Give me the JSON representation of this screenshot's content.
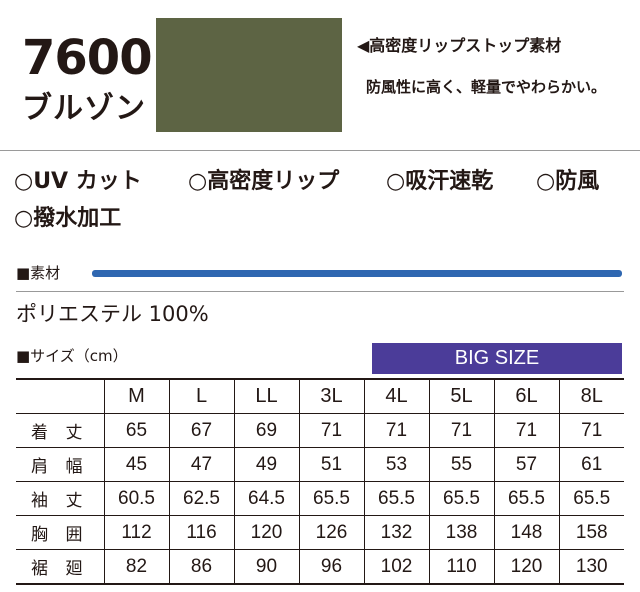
{
  "product": {
    "model": "7600",
    "name": "ブルゾン",
    "swatch_color": "#5d6444"
  },
  "fabric": {
    "title": "◀高密度リップストップ素材",
    "description": "防風性に高く、軽量でやわらかい。"
  },
  "features": [
    "○UV カット",
    "○高密度リップ",
    "○吸汗速乾",
    "○防風",
    "○撥水加工"
  ],
  "material": {
    "label": "■素材",
    "value": "ポリエステル 100%",
    "accent_color": "#2f67b1"
  },
  "size": {
    "label": "■サイズ（cm）",
    "big_size_label": "BIG SIZE",
    "big_size_color": "#4b3c99",
    "columns": [
      "M",
      "L",
      "LL",
      "3L",
      "4L",
      "5L",
      "6L",
      "8L"
    ],
    "rows": [
      {
        "label": "着 丈",
        "values": [
          "65",
          "67",
          "69",
          "71",
          "71",
          "71",
          "71",
          "71"
        ]
      },
      {
        "label": "肩 幅",
        "values": [
          "45",
          "47",
          "49",
          "51",
          "53",
          "55",
          "57",
          "61"
        ]
      },
      {
        "label": "袖 丈",
        "values": [
          "60.5",
          "62.5",
          "64.5",
          "65.5",
          "65.5",
          "65.5",
          "65.5",
          "65.5"
        ]
      },
      {
        "label": "胸 囲",
        "values": [
          "112",
          "116",
          "120",
          "126",
          "132",
          "138",
          "148",
          "158"
        ]
      },
      {
        "label": "裾 廻",
        "values": [
          "82",
          "86",
          "90",
          "96",
          "102",
          "110",
          "120",
          "130"
        ]
      }
    ]
  }
}
